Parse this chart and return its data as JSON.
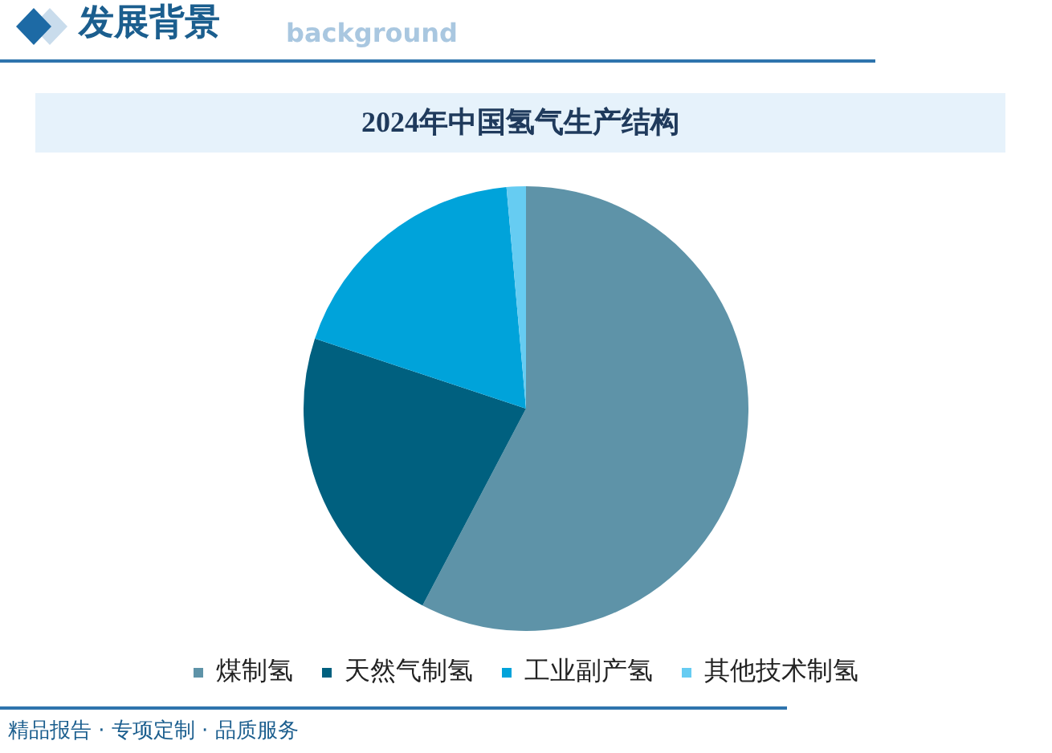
{
  "chart_data": {
    "type": "pie",
    "title": "2024年中国氢气生产结构",
    "categories": [
      "煤制氢",
      "天然气制氢",
      "工业副产氢",
      "其他技术制氢"
    ],
    "values": [
      57.7,
      22.4,
      18.5,
      1.4
    ],
    "colors": [
      "#5e93a8",
      "#00607f",
      "#00a3da",
      "#66ccf2"
    ],
    "legend": "bottom",
    "annotations": [
      "发展背景",
      "background",
      "精品报告 · 专项定制 · 品质服务"
    ]
  }
}
